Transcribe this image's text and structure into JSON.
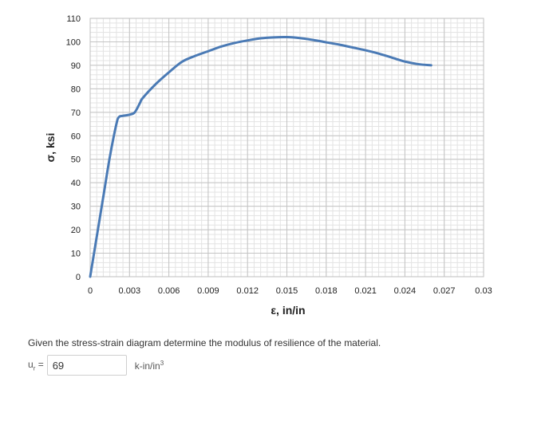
{
  "chart_data": {
    "type": "line",
    "xlabel": "ε, in/in",
    "ylabel": "σ, ksi",
    "xlim": [
      0,
      0.03
    ],
    "ylim": [
      0,
      110
    ],
    "x_ticks": [
      "0",
      "0.003",
      "0.006",
      "0.009",
      "0.012",
      "0.015",
      "0.018",
      "0.021",
      "0.024",
      "0.027",
      "0.03"
    ],
    "y_ticks": [
      "0",
      "10",
      "20",
      "30",
      "40",
      "50",
      "60",
      "70",
      "80",
      "90",
      "100",
      "110"
    ],
    "grid": true,
    "line_color": "#4a7ab5",
    "series": [
      {
        "x": [
          0,
          0.0005,
          0.001,
          0.0015,
          0.002,
          0.0022,
          0.0025,
          0.003,
          0.0034,
          0.0038,
          0.004,
          0.005,
          0.006,
          0.007,
          0.008,
          0.009,
          0.01,
          0.011,
          0.012,
          0.013,
          0.014,
          0.015,
          0.016,
          0.017,
          0.018,
          0.019,
          0.02,
          0.021,
          0.022,
          0.023,
          0.024,
          0.025,
          0.026
        ],
        "y": [
          0,
          17,
          34,
          51,
          65,
          68,
          68.5,
          69,
          70,
          74,
          76,
          82,
          87,
          91.5,
          94,
          96,
          98,
          99.5,
          100.6,
          101.5,
          101.9,
          102,
          101.6,
          100.8,
          99.8,
          98.8,
          97.6,
          96.4,
          95,
          93.3,
          91.6,
          90.5,
          90
        ]
      }
    ]
  },
  "question": {
    "text": "Given the stress-strain diagram determine the modulus of resilience of the material."
  },
  "answer": {
    "label_main": "u",
    "label_sub": "r",
    "label_eq": " =",
    "value": "69",
    "unit_main": "k-in/in",
    "unit_sup": "3"
  }
}
